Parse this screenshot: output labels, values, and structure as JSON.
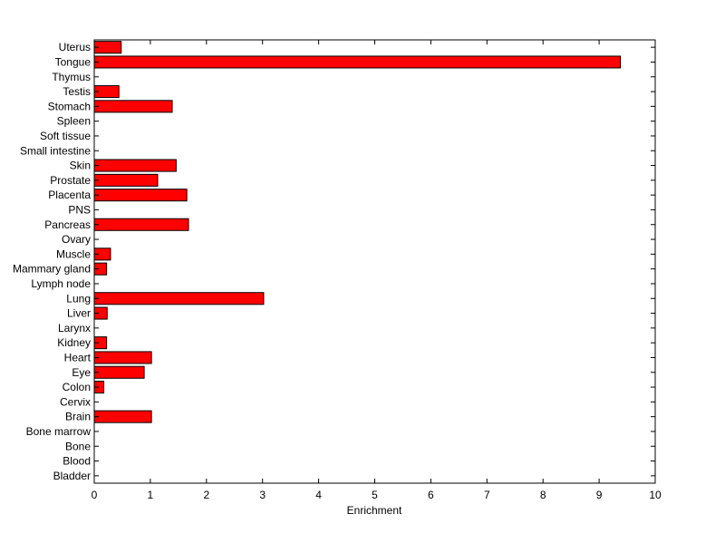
{
  "chart_data": {
    "type": "bar",
    "orientation": "horizontal",
    "title": "",
    "xlabel": "Enrichment",
    "ylabel": "",
    "xlim": [
      0,
      10
    ],
    "xticks": [
      0,
      1,
      2,
      3,
      4,
      5,
      6,
      7,
      8,
      9,
      10
    ],
    "bar_color": "#ff0000",
    "bar_edge_color": "#000000",
    "grid": false,
    "legend": "none",
    "categories": [
      "Uterus",
      "Tongue",
      "Thymus",
      "Testis",
      "Stomach",
      "Spleen",
      "Soft tissue",
      "Small intestine",
      "Skin",
      "Prostate",
      "Placenta",
      "PNS",
      "Pancreas",
      "Ovary",
      "Muscle",
      "Mammary gland",
      "Lymph node",
      "Lung",
      "Liver",
      "Larynx",
      "Kidney",
      "Heart",
      "Eye",
      "Colon",
      "Cervix",
      "Brain",
      "Bone marrow",
      "Bone",
      "Blood",
      "Bladder"
    ],
    "values": [
      0.48,
      9.38,
      0,
      0.44,
      1.39,
      0,
      0,
      0,
      1.46,
      1.13,
      1.65,
      0,
      1.68,
      0,
      0.29,
      0.22,
      0,
      3.02,
      0.23,
      0,
      0.22,
      1.02,
      0.89,
      0.17,
      0,
      1.02,
      0,
      0,
      0,
      0
    ]
  }
}
